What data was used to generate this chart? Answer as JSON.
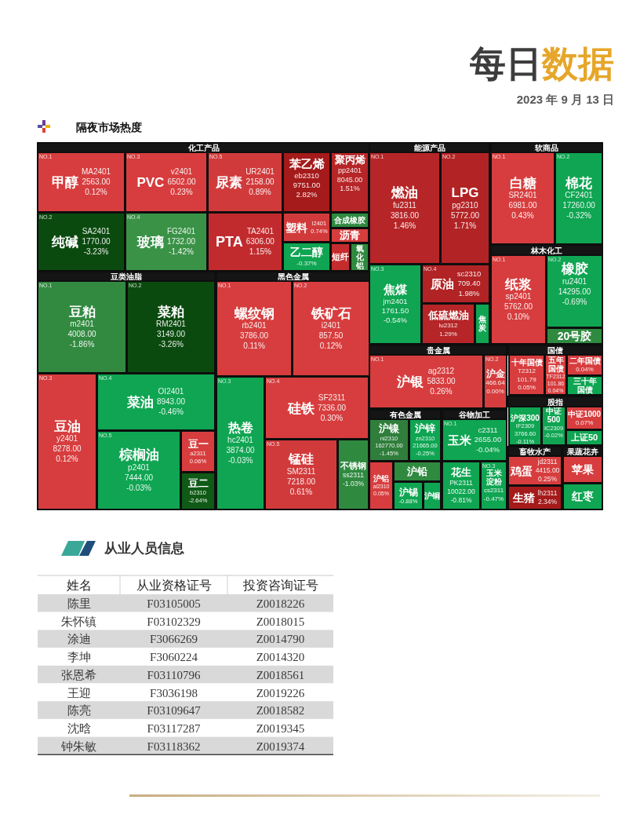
{
  "chart_data": [
    {
      "type": "other",
      "title": "隔夜市场热度",
      "annotations": [
        "每日数据",
        "2023 年 9 月 13 日"
      ]
    },
    {
      "type": "other",
      "title": "化工产品",
      "categories": [
        "甲醇",
        "纯碱",
        "PVC",
        "玻璃",
        "尿素",
        "PTA",
        "苯乙烯",
        "聚丙烯",
        "塑料",
        "乙二醇",
        "合成橡胶",
        "沥青",
        "短纤",
        "氧化铝"
      ],
      "values": [
        0.12,
        -3.23,
        0.23,
        -1.42,
        0.89,
        1.15,
        2.82,
        1.51,
        0.74,
        -0.37,
        null,
        null,
        null,
        null
      ],
      "value_labels": [
        "0.12%",
        "-3.23%",
        "0.23%",
        "-1.42%",
        "0.89%",
        "1.15%",
        "2.82%",
        "1.51%",
        "0.74%",
        "-0.37%",
        null,
        null,
        null,
        null
      ],
      "colors": [
        "#d73d3e",
        "#0b4a0f",
        "#d73d3e",
        "#3a9247",
        "#d13a3b",
        "#c22b2e",
        "#a51a1a",
        "#b62527",
        "#d13a3b",
        "#0fa552",
        "#2f8a40",
        "#d73d3e",
        "#c42c2e",
        "#2f8a40"
      ],
      "annotations": [
        "NO.1",
        "NO.2",
        "NO.3",
        "NO.4",
        "NO.5",
        {
          "text": "MA2401",
          "x": "甲醇"
        },
        {
          "text": "2563.00",
          "x": "甲醇"
        },
        {
          "text": "SA2401",
          "x": "纯碱"
        },
        {
          "text": "1770.00",
          "x": "纯碱"
        },
        {
          "text": "v2401",
          "x": "PVC"
        },
        {
          "text": "6502.00",
          "x": "PVC"
        },
        {
          "text": "FG2401",
          "x": "玻璃"
        },
        {
          "text": "1732.00",
          "x": "玻璃"
        },
        {
          "text": "UR2401",
          "x": "尿素"
        },
        {
          "text": "2158.00",
          "x": "尿素"
        },
        {
          "text": "TA2401",
          "x": "PTA"
        },
        {
          "text": "6306.00",
          "x": "PTA"
        },
        {
          "text": "eb2310",
          "x": "苯乙烯"
        },
        {
          "text": "9751.00",
          "x": "苯乙烯"
        },
        {
          "text": "pp2401",
          "x": "聚丙烯"
        },
        {
          "text": "8045.00",
          "x": "聚丙烯"
        },
        {
          "text": "l2401",
          "x": "塑料"
        }
      ]
    },
    {
      "type": "other",
      "title": "能源产品",
      "categories": [
        "燃油",
        "LPG",
        "焦煤",
        "原油",
        "低硫燃油",
        "焦炭"
      ],
      "values": [
        1.46,
        1.71,
        -0.54,
        1.98,
        1.29,
        null
      ],
      "value_labels": [
        "1.46%",
        "1.71%",
        "-0.54%",
        "1.98%",
        "1.29%",
        null
      ],
      "colors": [
        "#b62527",
        "#b22325",
        "#0fa552",
        "#b22325",
        "#b62527",
        "#0fa552"
      ],
      "annotations": [
        "NO.1",
        "NO.2",
        "NO.3",
        "NO.4",
        {
          "text": "fu2311",
          "x": "燃油"
        },
        {
          "text": "3816.00",
          "x": "燃油"
        },
        {
          "text": "pg2310",
          "x": "LPG"
        },
        {
          "text": "5772.00",
          "x": "LPG"
        },
        {
          "text": "jm2401",
          "x": "焦煤"
        },
        {
          "text": "1761.50",
          "x": "焦煤"
        },
        {
          "text": "sc2310",
          "x": "原油"
        },
        {
          "text": "709.40",
          "x": "原油"
        },
        {
          "text": "lu2312",
          "x": "低硫燃油"
        }
      ]
    },
    {
      "type": "other",
      "title": "软商品",
      "categories": [
        "白糖",
        "棉花"
      ],
      "values": [
        0.43,
        -0.32
      ],
      "value_labels": [
        "0.43%",
        "-0.32%"
      ],
      "colors": [
        "#d73d3e",
        "#0fa552"
      ],
      "annotations": [
        "NO.1",
        "NO.2",
        {
          "text": "SR2401",
          "x": "白糖"
        },
        {
          "text": "6981.00",
          "x": "白糖"
        },
        {
          "text": "CF2401",
          "x": "棉花"
        },
        {
          "text": "17260.00",
          "x": "棉花"
        }
      ]
    },
    {
      "type": "other",
      "title": "林木化工",
      "categories": [
        "纸浆",
        "橡胶",
        "20号胶"
      ],
      "values": [
        0.1,
        -0.69,
        null
      ],
      "value_labels": [
        "0.10%",
        "-0.69%",
        null
      ],
      "colors": [
        "#d73d3e",
        "#0fa552",
        "#2f8a40"
      ],
      "annotations": [
        "NO.1",
        "NO.2",
        {
          "text": "sp2401",
          "x": "纸浆"
        },
        {
          "text": "5762.00",
          "x": "纸浆"
        },
        {
          "text": "ru2401",
          "x": "橡胶"
        },
        {
          "text": "14295.00",
          "x": "橡胶"
        }
      ]
    },
    {
      "type": "other",
      "title": "豆类油脂",
      "categories": [
        "豆粕",
        "菜粕",
        "豆油",
        "菜油",
        "棕榈油",
        "豆一",
        "豆二"
      ],
      "values": [
        -1.86,
        -3.26,
        0.12,
        -0.46,
        -0.03,
        0.06,
        -2.64
      ],
      "value_labels": [
        "-1.86%",
        "-3.26%",
        "0.12%",
        "-0.46%",
        "-0.03%",
        "0.06%",
        "-2.64%"
      ],
      "colors": [
        "#328a41",
        "#0b4a0f",
        "#d73d3e",
        "#0fa552",
        "#0fa552",
        "#d73d3e",
        "#0f5a16"
      ],
      "annotations": [
        "NO.1",
        "NO.2",
        "NO.3",
        "NO.4",
        "NO.5",
        {
          "text": "m2401",
          "x": "豆粕"
        },
        {
          "text": "4008.00",
          "x": "豆粕"
        },
        {
          "text": "RM2401",
          "x": "菜粕"
        },
        {
          "text": "3149.00",
          "x": "菜粕"
        },
        {
          "text": "y2401",
          "x": "豆油"
        },
        {
          "text": "8278.00",
          "x": "豆油"
        },
        {
          "text": "OI2401",
          "x": "菜油"
        },
        {
          "text": "8943.00",
          "x": "菜油"
        },
        {
          "text": "p2401",
          "x": "棕榈油"
        },
        {
          "text": "7444.00",
          "x": "棕榈油"
        },
        {
          "text": "a2311",
          "x": "豆一"
        },
        {
          "text": "b2310",
          "x": "豆二"
        }
      ]
    },
    {
      "type": "other",
      "title": "黑色金属",
      "categories": [
        "螺纹钢",
        "铁矿石",
        "热卷",
        "硅铁",
        "锰硅",
        "不锈钢"
      ],
      "values": [
        0.11,
        0.12,
        -0.03,
        0.3,
        0.61,
        -1.03
      ],
      "value_labels": [
        "0.11%",
        "0.12%",
        "-0.03%",
        "0.30%",
        "0.61%",
        "-1.03%"
      ],
      "colors": [
        "#d73d3e",
        "#d73d3e",
        "#0fa552",
        "#d73d3e",
        "#d13a3b",
        "#2f8a40"
      ],
      "annotations": [
        "NO.1",
        "NO.2",
        "NO.3",
        "NO.4",
        "NO.5",
        {
          "text": "rb2401",
          "x": "螺纹钢"
        },
        {
          "text": "3786.00",
          "x": "螺纹钢"
        },
        {
          "text": "i2401",
          "x": "铁矿石"
        },
        {
          "text": "857.50",
          "x": "铁矿石"
        },
        {
          "text": "hc2401",
          "x": "热卷"
        },
        {
          "text": "3874.00",
          "x": "热卷"
        },
        {
          "text": "SF2311",
          "x": "硅铁"
        },
        {
          "text": "7336.00",
          "x": "硅铁"
        },
        {
          "text": "SM2311",
          "x": "锰硅"
        },
        {
          "text": "7218.00",
          "x": "锰硅"
        },
        {
          "text": "ss2311",
          "x": "不锈钢"
        }
      ]
    },
    {
      "type": "other",
      "title": "贵金属",
      "categories": [
        "沪银",
        "沪金"
      ],
      "values": [
        0.26,
        0.0
      ],
      "value_labels": [
        "0.26%",
        "0.00%"
      ],
      "colors": [
        "#d73d3e",
        "#d73d3e"
      ],
      "annotations": [
        "NO.1",
        "NO.2",
        {
          "text": "ag2312",
          "x": "沪银"
        },
        {
          "text": "5833.00",
          "x": "沪银"
        },
        {
          "text": "466.64",
          "x": "沪金"
        }
      ]
    },
    {
      "type": "other",
      "title": "国债",
      "categories": [
        "十年国债",
        "二年国债",
        "五年国债",
        "三十年国债"
      ],
      "values": [
        0.05,
        0.04,
        0.04,
        null
      ],
      "value_labels": [
        "0.05%",
        "0.04%",
        "0.04%",
        null
      ],
      "colors": [
        "#d73d3e",
        "#d73d3e",
        "#d73d3e",
        "#0fa552"
      ],
      "annotations": [
        {
          "text": "T2312",
          "x": "十年国债"
        },
        {
          "text": "101.79",
          "x": "十年国债"
        },
        {
          "text": "TF2312",
          "x": "五年国债"
        },
        {
          "text": "101.86",
          "x": "五年国债"
        }
      ]
    },
    {
      "type": "other",
      "title": "股指",
      "categories": [
        "沪深300",
        "中证500",
        "中证1000",
        "上证50"
      ],
      "values": [
        -0.11,
        -0.02,
        0.07,
        null
      ],
      "value_labels": [
        "-0.11%",
        "-0.02%",
        "0.07%",
        null
      ],
      "colors": [
        "#0fa552",
        "#0fa552",
        "#d73d3e",
        "#0fa552"
      ],
      "annotations": [
        {
          "text": "IF2309",
          "x": "沪深300"
        },
        {
          "text": "3766.60",
          "x": "沪深300"
        },
        {
          "text": "IC2309",
          "x": "中证500"
        }
      ]
    },
    {
      "type": "other",
      "title": "有色金属",
      "categories": [
        "沪镍",
        "沪锌",
        "沪铝",
        "沪铅",
        "沪锡",
        "沪铜"
      ],
      "values": [
        -1.45,
        -0.25,
        0.05,
        null,
        -0.88,
        null
      ],
      "value_labels": [
        "-1.45%",
        "-0.25%",
        "0.05%",
        null,
        "-0.88%",
        null
      ],
      "colors": [
        "#2f7e3b",
        "#0fa552",
        "#d73d3e",
        "#2f8a40",
        "#0fa552",
        "#0fa552"
      ],
      "annotations": [
        {
          "text": "ni2310",
          "x": "沪镍"
        },
        {
          "text": "162770.00",
          "x": "沪镍"
        },
        {
          "text": "zn2310",
          "x": "沪锌"
        },
        {
          "text": "21665.00",
          "x": "沪锌"
        },
        {
          "text": "al2310",
          "x": "沪铝"
        }
      ]
    },
    {
      "type": "other",
      "title": "谷物加工",
      "categories": [
        "玉米",
        "玉米淀粉",
        "花生"
      ],
      "values": [
        -0.04,
        -0.47,
        -0.81
      ],
      "value_labels": [
        "-0.04%",
        "-0.47%",
        "-0.81%"
      ],
      "colors": [
        "#0fa552",
        "#0fa552",
        "#0fa552"
      ],
      "annotations": [
        "NO.1",
        "NO.3",
        {
          "text": "c2311",
          "x": "玉米"
        },
        {
          "text": "2655.00",
          "x": "玉米"
        },
        {
          "text": "cs2311",
          "x": "玉米淀粉"
        },
        {
          "text": "PK2311",
          "x": "花生"
        },
        {
          "text": "10022.00",
          "x": "花生"
        }
      ]
    },
    {
      "type": "other",
      "title": "畜牧水产",
      "categories": [
        "鸡蛋",
        "生猪"
      ],
      "values": [
        0.25,
        2.34
      ],
      "value_labels": [
        "0.25%",
        "2.34%"
      ],
      "colors": [
        "#d73d3e",
        "#a51a1a"
      ],
      "annotations": [
        {
          "text": "jd2311",
          "x": "鸡蛋"
        },
        {
          "text": "4415.00",
          "x": "鸡蛋"
        },
        {
          "text": "lh2311",
          "x": "生猪"
        }
      ]
    },
    {
      "type": "other",
      "title": "果蔬花卉",
      "categories": [
        "苹果",
        "红枣"
      ],
      "values": [
        null,
        null
      ],
      "colors": [
        "#d73d3e",
        "#0fa552"
      ]
    },
    {
      "type": "other",
      "title": "从业人员信息",
      "ylabel": "姓名",
      "categories": [
        "从业资格证号",
        "投资咨询证号"
      ],
      "y_categories": [
        "陈里",
        "朱怀镇",
        "涂迪",
        "李坤",
        "张恩希",
        "王迎",
        "陈亮",
        "沈晗",
        "钟朱敏"
      ],
      "cell_labels": [
        [
          "F03105005",
          "Z0018226"
        ],
        [
          "F03102329",
          "Z0018015"
        ],
        [
          "F3066269",
          "Z0014790"
        ],
        [
          "F3060224",
          "Z0014320"
        ],
        [
          "F03110796",
          "Z0018561"
        ],
        [
          "F3036198",
          "Z0019226"
        ],
        [
          "F03109647",
          "Z0018582"
        ],
        [
          "F03117287",
          "Z0019345"
        ],
        [
          "F03118362",
          "Z0019374"
        ]
      ]
    }
  ]
}
